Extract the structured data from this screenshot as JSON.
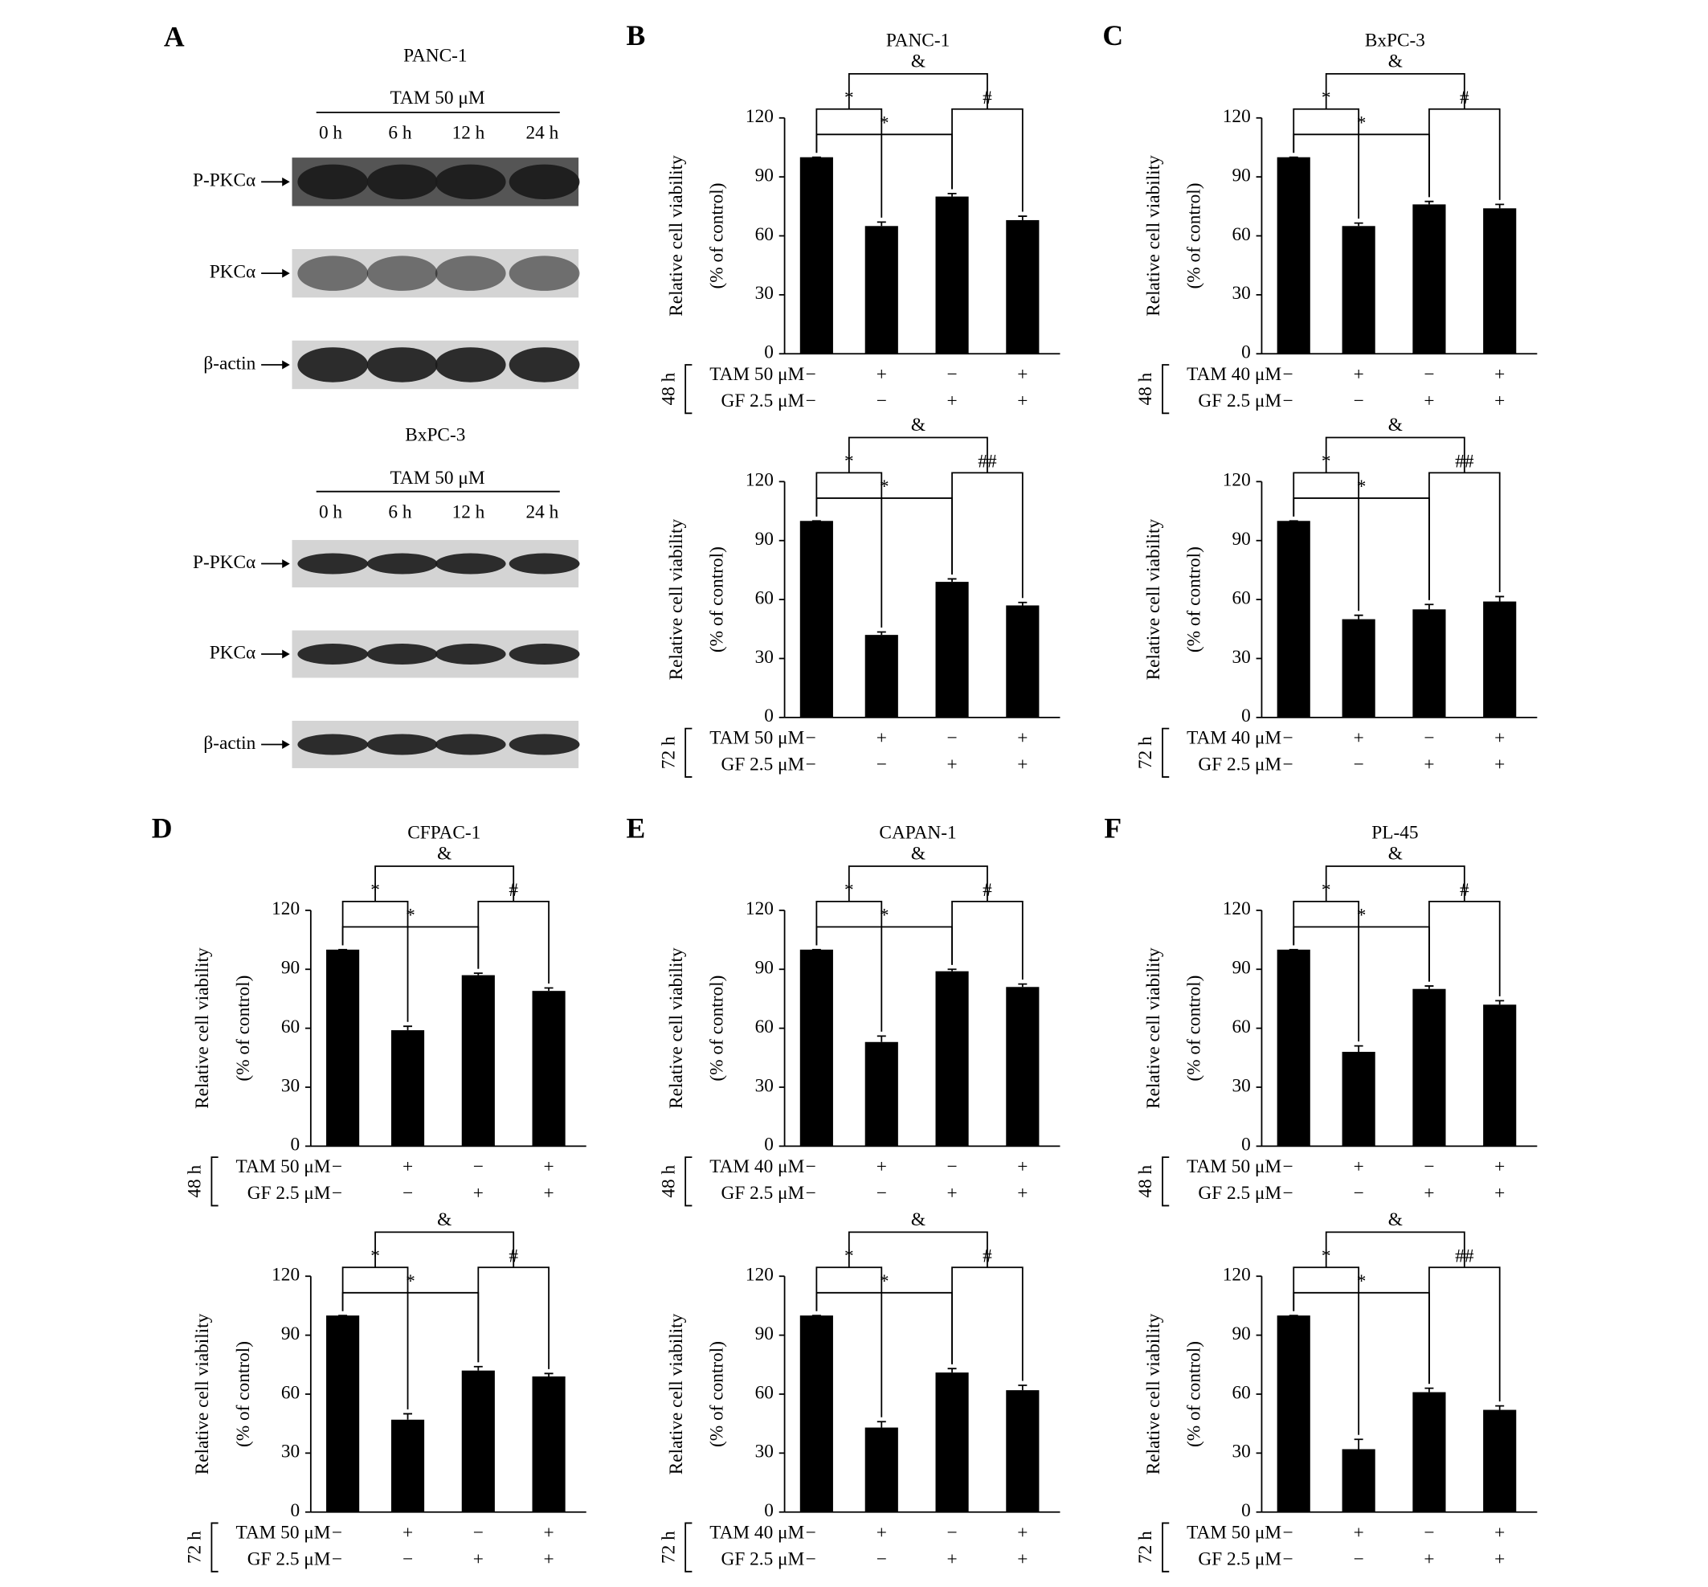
{
  "blot_panel": {
    "label": "A",
    "blots": [
      {
        "cell_line": "PANC-1",
        "treatment": "TAM 50 μM",
        "times": [
          "0 h",
          "6 h",
          "12 h",
          "24 h"
        ],
        "proteins": [
          "P-PKCα",
          "PKCα",
          "β-actin"
        ]
      },
      {
        "cell_line": "BxPC-3",
        "treatment": "TAM 50 μM",
        "times": [
          "0 h",
          "6 h",
          "12 h",
          "24 h"
        ],
        "proteins": [
          "P-PKCα",
          "PKCα",
          "β-actin"
        ]
      }
    ]
  },
  "chart_data": [
    {
      "type": "bar",
      "panel": "B",
      "title": "PANC-1",
      "time": "48 h",
      "ylabel": [
        "Relative cell viability",
        "(% of control)"
      ],
      "ylim": [
        0,
        120
      ],
      "yticks": [
        0,
        30,
        60,
        90,
        120
      ],
      "color": "#000000",
      "values": [
        100,
        65,
        80,
        68
      ],
      "errors": [
        0,
        2,
        1.5,
        2
      ],
      "conditions": [
        {
          "label": "TAM 50 μM",
          "signs": [
            "−",
            "+",
            "−",
            "+"
          ]
        },
        {
          "label": "GF 2.5 μM",
          "signs": [
            "−",
            "−",
            "+",
            "+"
          ]
        }
      ],
      "annotations": [
        "&",
        "*",
        "#",
        "*"
      ]
    },
    {
      "type": "bar",
      "time": "72 h",
      "ylabel": [
        "Relative cell viability",
        "(% of control)"
      ],
      "ylim": [
        0,
        120
      ],
      "yticks": [
        0,
        30,
        60,
        90,
        120
      ],
      "color": "#000000",
      "values": [
        100,
        42,
        69,
        57
      ],
      "errors": [
        0,
        1.5,
        1.5,
        1.5
      ],
      "conditions": [
        {
          "label": "TAM 50 μM",
          "signs": [
            "−",
            "+",
            "−",
            "+"
          ]
        },
        {
          "label": "GF 2.5 μM",
          "signs": [
            "−",
            "−",
            "+",
            "+"
          ]
        }
      ],
      "annotations": [
        "&",
        "*",
        "##",
        "*"
      ]
    },
    {
      "type": "bar",
      "panel": "C",
      "title": "BxPC-3",
      "time": "48 h",
      "ylabel": [
        "Relative cell viability",
        "(% of control)"
      ],
      "ylim": [
        0,
        120
      ],
      "yticks": [
        0,
        30,
        60,
        90,
        120
      ],
      "color": "#000000",
      "values": [
        100,
        65,
        76,
        74
      ],
      "errors": [
        0,
        1.5,
        1.5,
        2
      ],
      "conditions": [
        {
          "label": "TAM 40 μM",
          "signs": [
            "−",
            "+",
            "−",
            "+"
          ]
        },
        {
          "label": "GF 2.5 μM",
          "signs": [
            "−",
            "−",
            "+",
            "+"
          ]
        }
      ],
      "annotations": [
        "&",
        "*",
        "#",
        "*"
      ]
    },
    {
      "type": "bar",
      "time": "72 h",
      "ylabel": [
        "Relative cell viability",
        "(% of control)"
      ],
      "ylim": [
        0,
        120
      ],
      "yticks": [
        0,
        30,
        60,
        90,
        120
      ],
      "color": "#000000",
      "values": [
        100,
        50,
        55,
        59
      ],
      "errors": [
        0,
        2,
        2.5,
        2.5
      ],
      "conditions": [
        {
          "label": "TAM 40 μM",
          "signs": [
            "−",
            "+",
            "−",
            "+"
          ]
        },
        {
          "label": "GF 2.5 μM",
          "signs": [
            "−",
            "−",
            "+",
            "+"
          ]
        }
      ],
      "annotations": [
        "&",
        "*",
        "##",
        "*"
      ]
    },
    {
      "type": "bar",
      "panel": "D",
      "title": "CFPAC-1",
      "time": "48 h",
      "ylabel": [
        "Relative cell viability",
        "(% of control)"
      ],
      "ylim": [
        0,
        120
      ],
      "yticks": [
        0,
        30,
        60,
        90,
        120
      ],
      "color": "#000000",
      "values": [
        100,
        59,
        87,
        79
      ],
      "errors": [
        0,
        2,
        1,
        1.5
      ],
      "conditions": [
        {
          "label": "TAM 50 μM",
          "signs": [
            "−",
            "+",
            "−",
            "+"
          ]
        },
        {
          "label": "GF 2.5 μM",
          "signs": [
            "−",
            "−",
            "+",
            "+"
          ]
        }
      ],
      "annotations": [
        "&",
        "*",
        "#",
        "*"
      ]
    },
    {
      "type": "bar",
      "time": "72 h",
      "ylabel": [
        "Relative cell viability",
        "(% of control)"
      ],
      "ylim": [
        0,
        120
      ],
      "yticks": [
        0,
        30,
        60,
        90,
        120
      ],
      "color": "#000000",
      "values": [
        100,
        47,
        72,
        69
      ],
      "errors": [
        0,
        3,
        2,
        1.5
      ],
      "conditions": [
        {
          "label": "TAM 50 μM",
          "signs": [
            "−",
            "+",
            "−",
            "+"
          ]
        },
        {
          "label": "GF 2.5 μM",
          "signs": [
            "−",
            "−",
            "+",
            "+"
          ]
        }
      ],
      "annotations": [
        "&",
        "*",
        "#",
        "*"
      ]
    },
    {
      "type": "bar",
      "panel": "E",
      "title": "CAPAN-1",
      "time": "48 h",
      "ylabel": [
        "Relative cell viability",
        "(% of control)"
      ],
      "ylim": [
        0,
        120
      ],
      "yticks": [
        0,
        30,
        60,
        90,
        120
      ],
      "color": "#000000",
      "values": [
        100,
        53,
        89,
        81
      ],
      "errors": [
        0,
        3,
        1,
        1.5
      ],
      "conditions": [
        {
          "label": "TAM 40 μM",
          "signs": [
            "−",
            "+",
            "−",
            "+"
          ]
        },
        {
          "label": "GF 2.5 μM",
          "signs": [
            "−",
            "−",
            "+",
            "+"
          ]
        }
      ],
      "annotations": [
        "&",
        "*",
        "#",
        "*"
      ]
    },
    {
      "type": "bar",
      "time": "72 h",
      "ylabel": [
        "Relative cell viability",
        "(% of control)"
      ],
      "ylim": [
        0,
        120
      ],
      "yticks": [
        0,
        30,
        60,
        90,
        120
      ],
      "color": "#000000",
      "values": [
        100,
        43,
        71,
        62
      ],
      "errors": [
        0,
        3,
        2,
        2.5
      ],
      "conditions": [
        {
          "label": "TAM 40 μM",
          "signs": [
            "−",
            "+",
            "−",
            "+"
          ]
        },
        {
          "label": "GF 2.5 μM",
          "signs": [
            "−",
            "−",
            "+",
            "+"
          ]
        }
      ],
      "annotations": [
        "&",
        "*",
        "#",
        "*"
      ]
    },
    {
      "type": "bar",
      "panel": "F",
      "title": "PL-45",
      "time": "48 h",
      "ylabel": [
        "Relative cell viability",
        "(% of control)"
      ],
      "ylim": [
        0,
        120
      ],
      "yticks": [
        0,
        30,
        60,
        90,
        120
      ],
      "color": "#000000",
      "values": [
        100,
        48,
        80,
        72
      ],
      "errors": [
        0,
        3,
        1.5,
        2
      ],
      "conditions": [
        {
          "label": "TAM 50 μM",
          "signs": [
            "−",
            "+",
            "−",
            "+"
          ]
        },
        {
          "label": "GF 2.5 μM",
          "signs": [
            "−",
            "−",
            "+",
            "+"
          ]
        }
      ],
      "annotations": [
        "&",
        "*",
        "#",
        "*"
      ]
    },
    {
      "type": "bar",
      "time": "72 h",
      "ylabel": [
        "Relative cell viability",
        "(% of control)"
      ],
      "ylim": [
        0,
        120
      ],
      "yticks": [
        0,
        30,
        60,
        90,
        120
      ],
      "color": "#000000",
      "values": [
        100,
        32,
        61,
        52
      ],
      "errors": [
        0,
        5,
        2,
        2
      ],
      "conditions": [
        {
          "label": "TAM 50 μM",
          "signs": [
            "−",
            "+",
            "−",
            "+"
          ]
        },
        {
          "label": "GF 2.5 μM",
          "signs": [
            "−",
            "−",
            "+",
            "+"
          ]
        }
      ],
      "annotations": [
        "&",
        "*",
        "##",
        "*"
      ]
    }
  ]
}
